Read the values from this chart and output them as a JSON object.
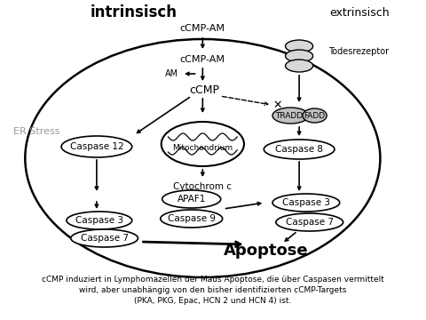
{
  "title_intrinsisch": "intrinsisch",
  "title_extrinsisch": "extrinsisch",
  "er_stress": "ER Stress",
  "label_ccmp_am_top": "cCMP-AM",
  "label_ccmp_am_mid": "cCMP-AM",
  "label_am": "AM",
  "label_ccmp": "cCMP",
  "label_mito": "Mitochondrium",
  "label_cytc": "Cytochrom c",
  "label_apaf1": "APAF1",
  "label_casp9": "Caspase 9",
  "label_casp12": "Caspase 12",
  "label_casp3_left": "Caspase 3",
  "label_casp7_left": "Caspase 7",
  "label_casp3_right": "Caspase 3",
  "label_casp7_right": "Caspase 7",
  "label_casp8": "Caspase 8",
  "label_tradd": "TRADD",
  "label_fadd": "FADD",
  "label_todesrezeptor": "Todesrezeptor",
  "label_apoptose": "Apoptose",
  "caption": "cCMP induziert in Lymphomazellen der Maus Apoptose, die über Caspasen vermittelt\nwird, aber unabhängig von den bisher identifizierten cCMP-Targets\n(PKA, PKG, Epac, HCN 2 und HCN 4) ist.",
  "bg_color": "#ffffff",
  "er_stress_color": "#999999",
  "gray_fill": "#c0c0c0"
}
